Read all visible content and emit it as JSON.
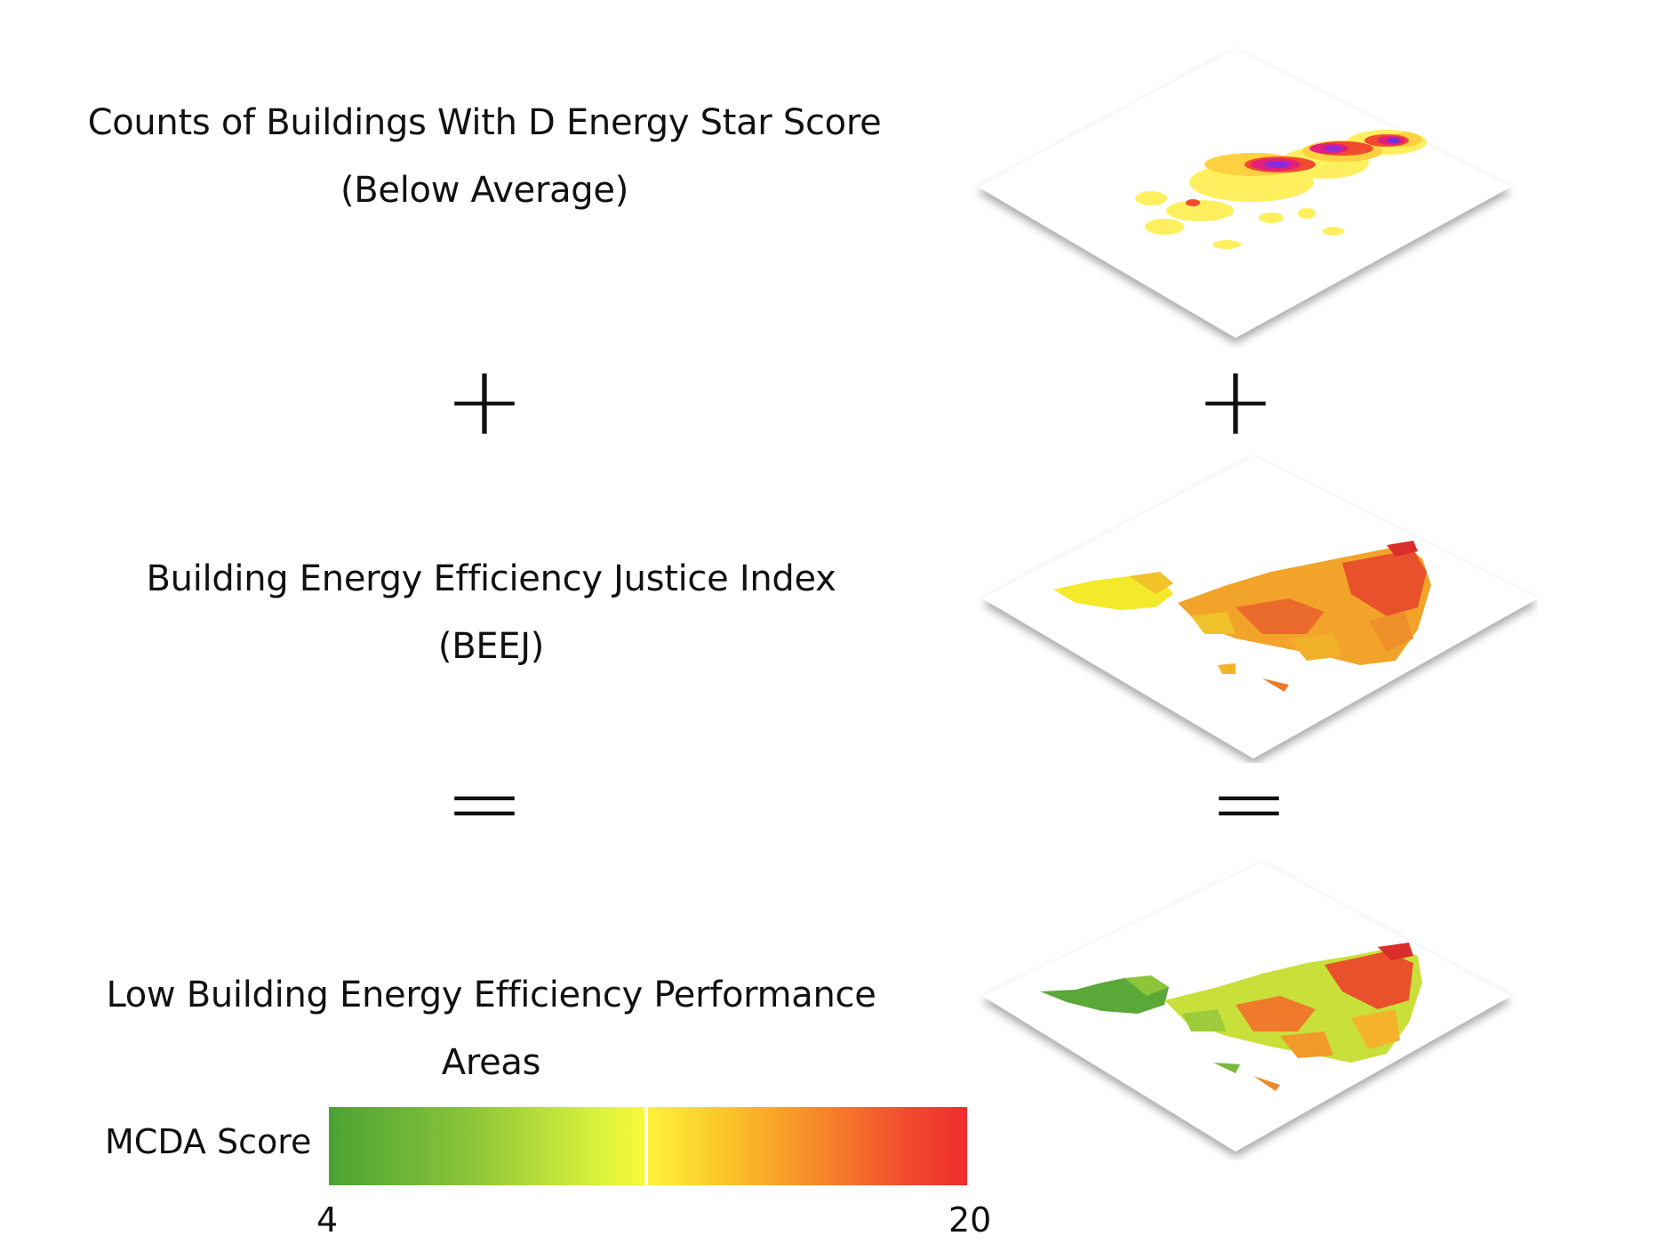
{
  "layers": [
    {
      "label_line1": "Counts of Buildings With D Energy Star Score",
      "label_line2": "(Below Average)"
    },
    {
      "label_line1": "Building Energy Efficiency Justice Index",
      "label_line2": "(BEEJ)"
    },
    {
      "label_line1": "Low Building Energy Efficiency Performance Areas",
      "label_line2": ""
    }
  ],
  "operators": {
    "plus": "+",
    "equals": "="
  },
  "legend": {
    "title": "MCDA Score",
    "min_label": "4",
    "max_label": "20",
    "colors": [
      "#4aa233",
      "#d9f23c",
      "#fff23a",
      "#f6872a",
      "#ee2d2e"
    ]
  }
}
